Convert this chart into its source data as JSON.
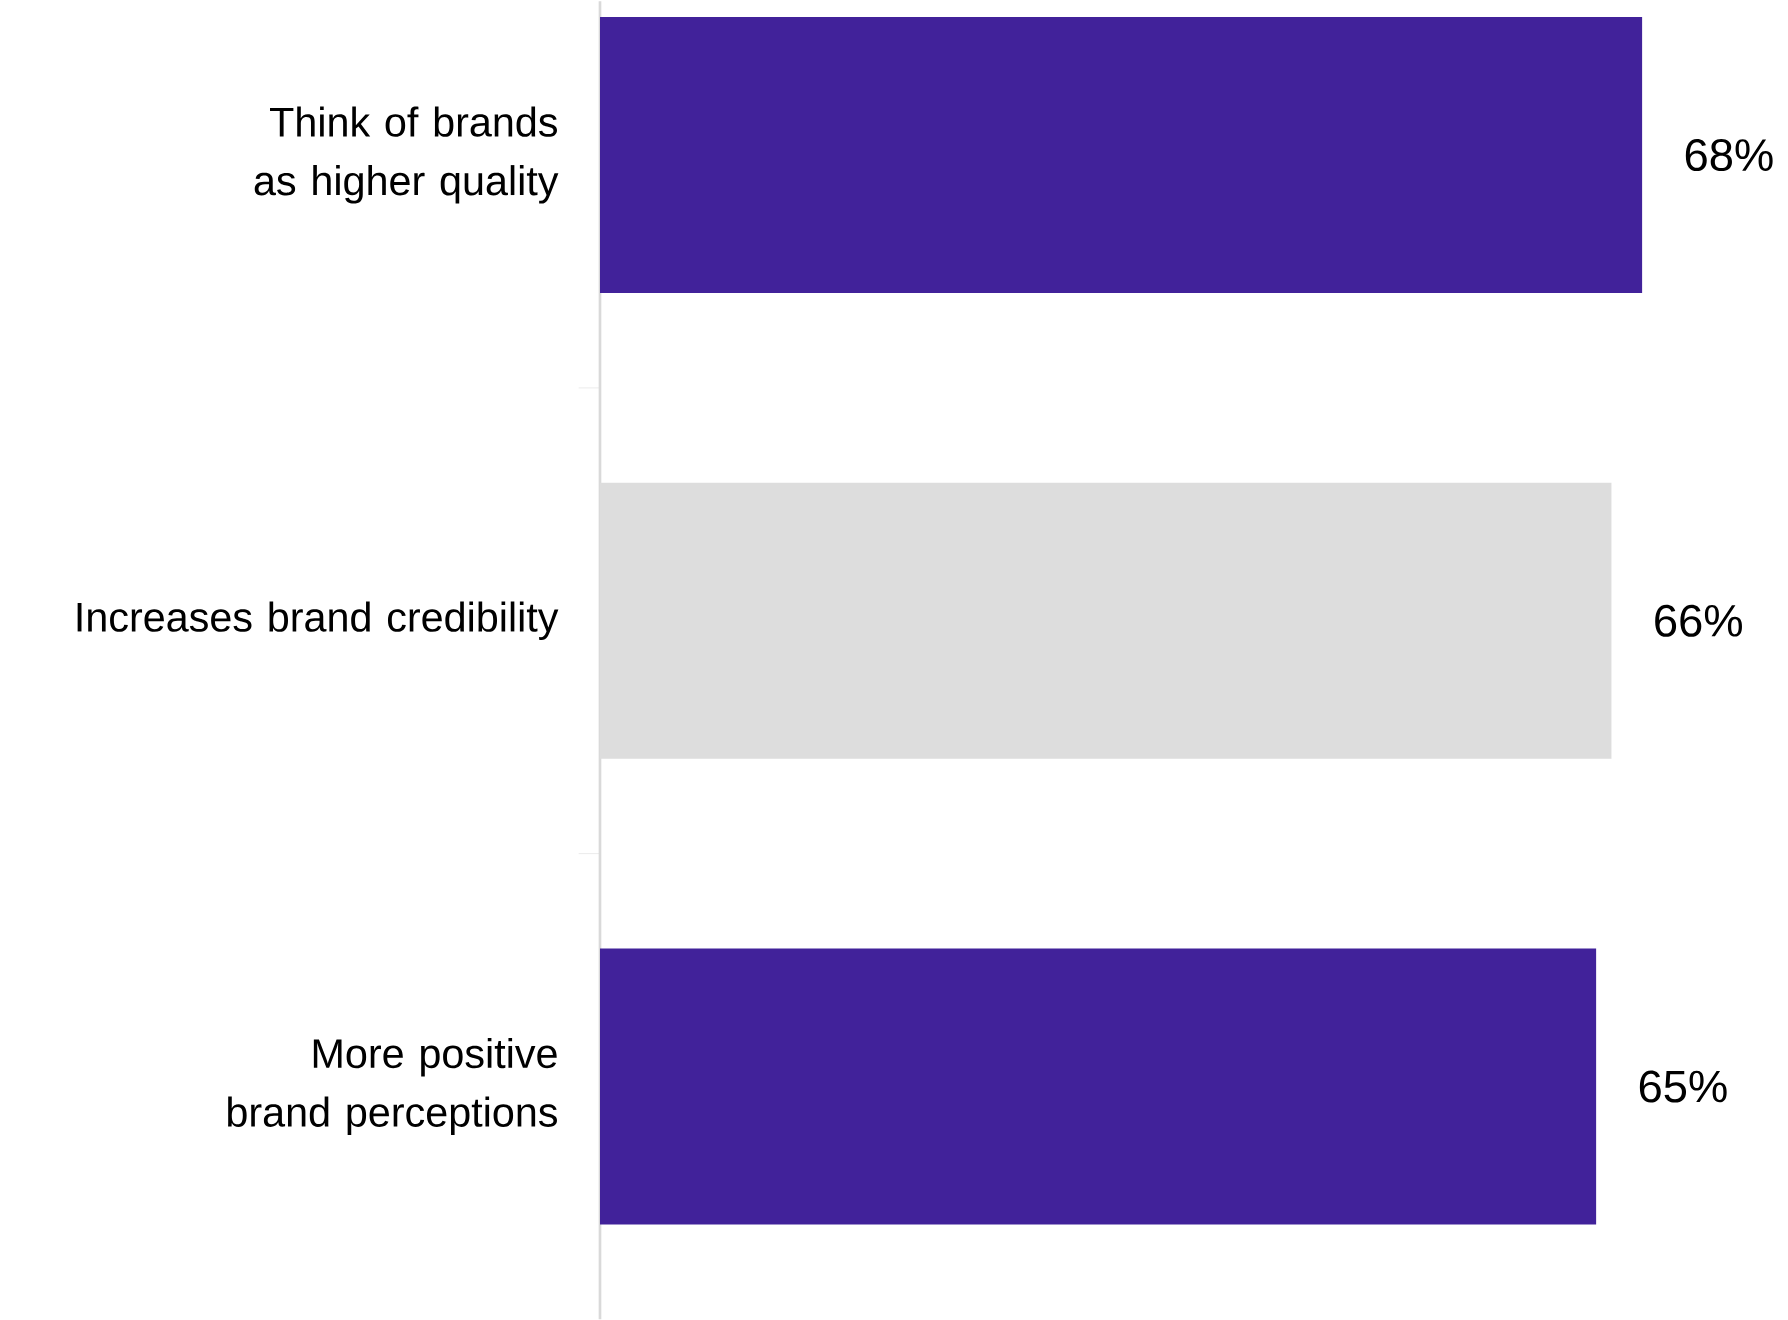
{
  "chart_data": {
    "type": "bar",
    "orientation": "horizontal",
    "categories": [
      "Think of brands as higher quality",
      "Increases brand credibility",
      "More positive brand perceptions"
    ],
    "values": [
      68,
      66,
      65
    ],
    "colors": [
      "#41229a",
      "#dddddd",
      "#41229a"
    ],
    "value_labels": [
      "68%",
      "66%",
      "65%"
    ],
    "tick_labels": "y",
    "grid": false
  }
}
